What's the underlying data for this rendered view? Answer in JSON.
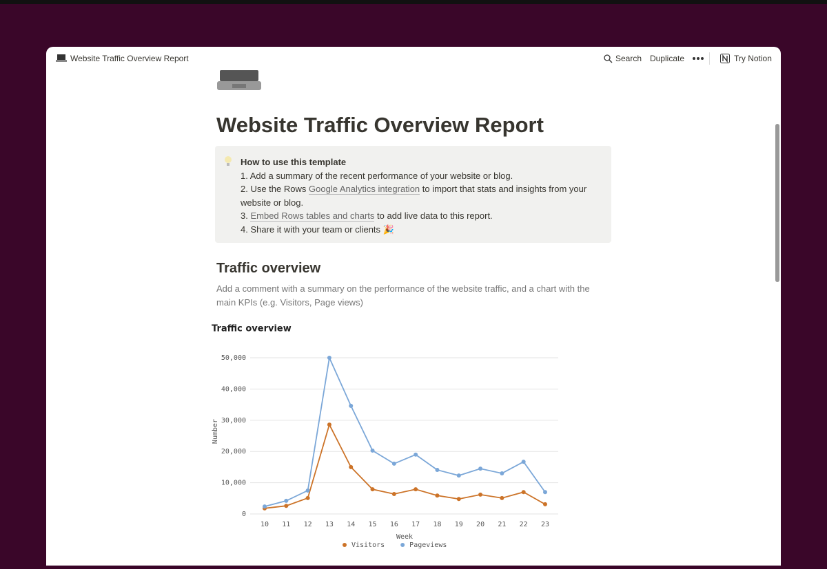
{
  "topbar": {
    "page_name": "Website Traffic Overview Report",
    "actions": [
      "Search",
      "Duplicate"
    ],
    "try": "Try Notion"
  },
  "page": {
    "title": "Website Traffic Overview Report",
    "callout": {
      "heading": "How to use this template",
      "items": [
        [
          {
            "text": "1. Add a summary of the recent performance of your website or blog."
          }
        ],
        [
          {
            "text": "2. Use the Rows "
          },
          {
            "text": "Google Analytics integration",
            "link": true
          },
          {
            "text": " to import that stats and insights from your website or blog."
          }
        ],
        [
          {
            "text": "3. "
          },
          {
            "text": "Embed Rows tables and charts",
            "link": true
          },
          {
            "text": " to add live data to this report."
          }
        ],
        [
          {
            "text": "4. Share it with your team or clients 🎉"
          }
        ]
      ]
    },
    "section": {
      "heading": "Traffic overview",
      "comment": "Add a comment with a summary on the performance of the website traffic, and a chart with the main KPIs (e.g. Visitors, Page views)"
    }
  },
  "chart_data": {
    "type": "line",
    "title": "Traffic overview",
    "x_label": "Week",
    "y_label": "Number",
    "categories": [
      "10",
      "11",
      "12",
      "13",
      "14",
      "15",
      "16",
      "17",
      "18",
      "19",
      "20",
      "21",
      "22",
      "23"
    ],
    "series": [
      {
        "name": "Visitors",
        "color": "#cc7328",
        "values": [
          1800,
          2600,
          5100,
          28600,
          15000,
          7900,
          6400,
          7900,
          5900,
          4800,
          6200,
          5100,
          7000,
          3100
        ]
      },
      {
        "name": "Pageviews",
        "color": "#7ba7d8",
        "values": [
          2400,
          4200,
          7500,
          50000,
          34600,
          20300,
          16100,
          19000,
          14100,
          12300,
          14500,
          13000,
          16700,
          7000
        ]
      }
    ],
    "ylim": [
      0,
      50000
    ],
    "yticks": [
      0,
      {
        "value": 10000,
        "label": "10,000"
      },
      {
        "value": 20000,
        "label": "20,000"
      },
      {
        "value": 30000,
        "label": "30,000"
      },
      {
        "value": 40000,
        "label": "40,000"
      },
      {
        "value": 50000,
        "label": "50,000"
      }
    ],
    "grid": true,
    "legend": "bottom"
  }
}
